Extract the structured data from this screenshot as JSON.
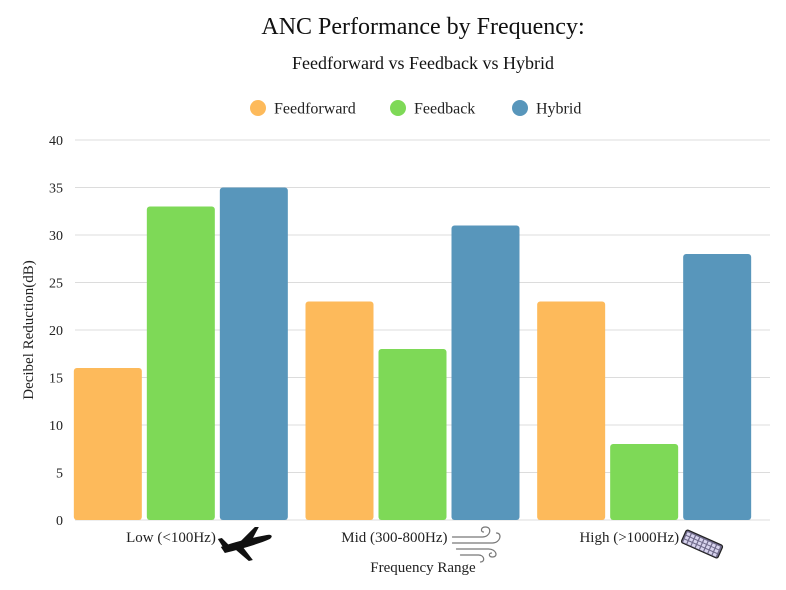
{
  "chart_data": {
    "type": "bar",
    "title": "ANC Performance by Frequency:",
    "subtitle": "Feedforward vs Feedback vs Hybrid",
    "xlabel": "Frequency Range",
    "ylabel": "Decibel Reduction(dB)",
    "ylim": [
      0,
      40
    ],
    "yticks": [
      0,
      5,
      10,
      15,
      20,
      25,
      30,
      35,
      40
    ],
    "grid": true,
    "legend_position": "top-center",
    "categories": [
      "Low (<100Hz)",
      "Mid (300-800Hz)",
      "High (>1000Hz)"
    ],
    "category_icons": [
      "airplane-icon",
      "wind-icon",
      "keyboard-icon"
    ],
    "series": [
      {
        "name": "Feedforward",
        "color": "#FDBA5B",
        "values": [
          16,
          23,
          23
        ]
      },
      {
        "name": "Feedback",
        "color": "#7ED957",
        "values": [
          33,
          18,
          8
        ]
      },
      {
        "name": "Hybrid",
        "color": "#5896BB",
        "values": [
          35,
          31,
          28
        ]
      }
    ]
  }
}
